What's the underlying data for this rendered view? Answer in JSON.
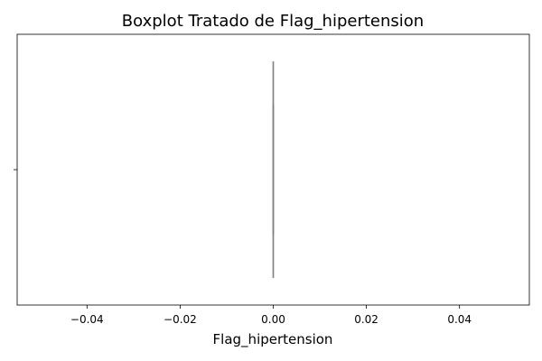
{
  "chart_data": {
    "type": "boxplot",
    "title": "Boxplot Tratado de Flag_hipertension",
    "xlabel": "Flag_hipertension",
    "ylabel": "",
    "xlim": [
      -0.055,
      0.055
    ],
    "x_ticks": [
      -0.04,
      -0.02,
      0.0,
      0.02,
      0.04
    ],
    "x_tick_labels": [
      "−0.04",
      "−0.02",
      "0.00",
      "0.02",
      "0.04"
    ],
    "y_ticks": [
      ""
    ],
    "orientation": "horizontal",
    "grid": false,
    "boxes": [
      {
        "min": 0.0,
        "q1": 0.0,
        "median": 0.0,
        "q3": 0.0,
        "max": 0.0,
        "outliers": []
      }
    ],
    "colors": {
      "box_line": "#808080",
      "axis": "#000000",
      "background": "#ffffff"
    }
  }
}
